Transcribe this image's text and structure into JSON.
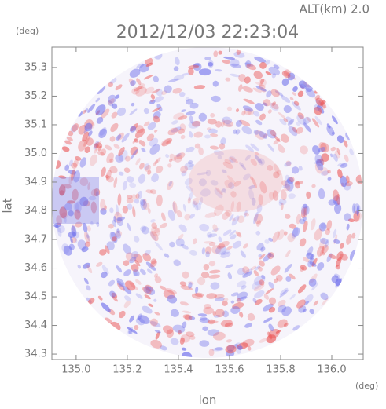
{
  "header": {
    "altitude": "ALT(km) 2.0",
    "title": "2012/12/03 22:23:04"
  },
  "plot": {
    "x_label": "lon",
    "y_label": "lat",
    "x_unit": "(deg)",
    "y_unit": "(deg)",
    "xlim": [
      134.905,
      136.123
    ],
    "ylim": [
      34.281,
      35.371
    ],
    "xticks": [
      {
        "value": 135,
        "label": "135.0"
      },
      {
        "value": 135.2,
        "label": "135.2"
      },
      {
        "value": 135.4,
        "label": "135.4"
      },
      {
        "value": 135.6,
        "label": "135.6"
      },
      {
        "value": 135.8,
        "label": "135.8"
      },
      {
        "value": 136,
        "label": "136.0"
      }
    ],
    "yticks": [
      {
        "value": 34.3,
        "label": "34.3"
      },
      {
        "value": 34.4,
        "label": "34.4"
      },
      {
        "value": 34.5,
        "label": "34.5"
      },
      {
        "value": 34.6,
        "label": "34.6"
      },
      {
        "value": 34.7,
        "label": "34.7"
      },
      {
        "value": 34.8,
        "label": "34.8"
      },
      {
        "value": 34.9,
        "label": "34.9"
      },
      {
        "value": 35,
        "label": "35.0"
      },
      {
        "value": 35.1,
        "label": "35.1"
      },
      {
        "value": 35.2,
        "label": "35.2"
      },
      {
        "value": 35.3,
        "label": "35.3"
      }
    ]
  }
}
